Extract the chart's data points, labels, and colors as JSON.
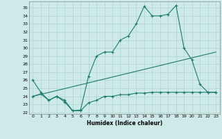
{
  "xlabel": "Humidex (Indice chaleur)",
  "ylabel": "",
  "xlim": [
    -0.5,
    23.5
  ],
  "ylim": [
    21.8,
    35.8
  ],
  "yticks": [
    22,
    23,
    24,
    25,
    26,
    27,
    28,
    29,
    30,
    31,
    32,
    33,
    34,
    35
  ],
  "xticks": [
    0,
    1,
    2,
    3,
    4,
    5,
    6,
    7,
    8,
    9,
    10,
    11,
    12,
    13,
    14,
    15,
    16,
    17,
    18,
    19,
    20,
    21,
    22,
    23
  ],
  "bg_color": "#ceeae8",
  "grid_color": "#afd4d0",
  "line_color": "#1a7a6e",
  "line1_x": [
    0,
    1,
    2,
    3,
    4,
    5,
    6,
    7,
    8,
    9,
    10,
    11,
    12,
    13,
    14,
    15,
    16,
    17,
    18,
    19,
    20,
    21,
    22,
    23
  ],
  "line1_y": [
    26.0,
    24.5,
    23.5,
    24.0,
    23.5,
    22.2,
    22.3,
    26.5,
    29.0,
    29.5,
    29.5,
    31.0,
    31.5,
    33.0,
    35.2,
    34.0,
    34.0,
    34.2,
    35.3,
    30.0,
    28.5,
    25.5,
    24.5,
    24.5
  ],
  "line2_x": [
    0,
    1,
    2,
    3,
    4,
    5,
    6,
    7,
    8,
    9,
    10,
    11,
    12,
    13,
    14,
    15,
    16,
    17,
    18,
    19,
    20,
    21,
    22,
    23
  ],
  "line2_y": [
    24.0,
    24.3,
    23.5,
    24.0,
    23.3,
    22.2,
    22.2,
    23.2,
    23.5,
    24.0,
    24.0,
    24.2,
    24.2,
    24.4,
    24.4,
    24.5,
    24.5,
    24.5,
    24.5,
    24.5,
    24.5,
    24.5,
    24.5,
    24.5
  ],
  "line3_x": [
    0,
    23
  ],
  "line3_y": [
    24.0,
    29.5
  ]
}
